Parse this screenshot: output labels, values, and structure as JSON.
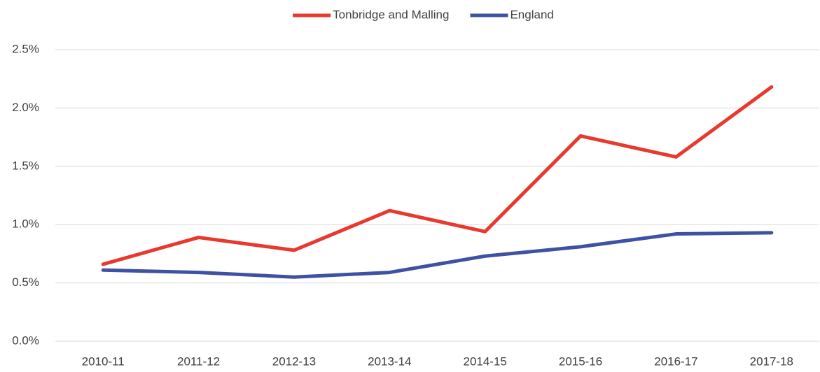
{
  "chart_data": {
    "type": "line",
    "categories": [
      "2010-11",
      "2011-12",
      "2012-13",
      "2013-14",
      "2014-15",
      "2015-16",
      "2016-17",
      "2017-18"
    ],
    "series": [
      {
        "name": "Tonbridge and Malling",
        "color": "#e8392f",
        "values": [
          0.66,
          0.89,
          0.78,
          1.12,
          0.94,
          1.76,
          1.58,
          2.18
        ]
      },
      {
        "name": "England",
        "color": "#3f51a3",
        "values": [
          0.61,
          0.59,
          0.55,
          0.59,
          0.73,
          0.81,
          0.92,
          0.93
        ]
      }
    ],
    "ylim": [
      0,
      2.5
    ],
    "yticks": [
      {
        "value": 0,
        "label": "0.0%"
      },
      {
        "value": 0.5,
        "label": "0.5%"
      },
      {
        "value": 1,
        "label": "1.0%"
      },
      {
        "value": 1.5,
        "label": "1.5%"
      },
      {
        "value": 2,
        "label": "2.0%"
      },
      {
        "value": 2.5,
        "label": "2.5%"
      }
    ],
    "grid": true,
    "legend": "top"
  }
}
